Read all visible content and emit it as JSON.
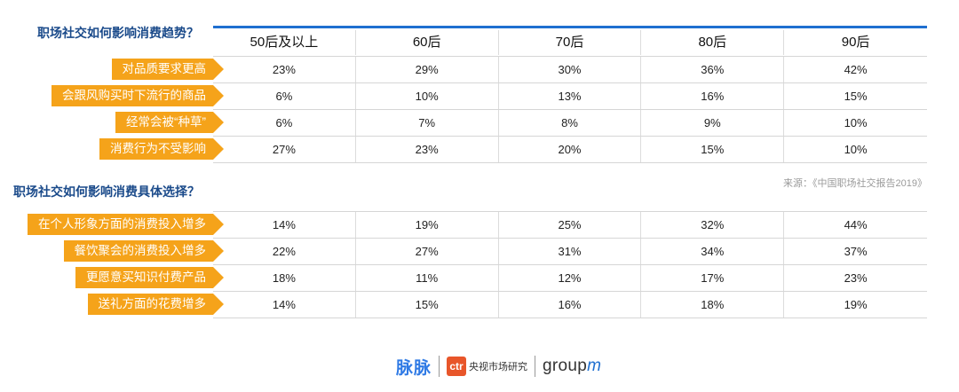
{
  "chart_data": [
    {
      "type": "table",
      "title": "职场社交如何影响消费趋势？",
      "columns": [
        "50后及以上",
        "60后",
        "70后",
        "80后",
        "90后"
      ],
      "rows": [
        {
          "label": "对品质要求更高",
          "values": [
            "23%",
            "29%",
            "30%",
            "36%",
            "42%"
          ]
        },
        {
          "label": "会跟风购买时下流行的商品",
          "values": [
            "6%",
            "10%",
            "13%",
            "16%",
            "15%"
          ]
        },
        {
          "label": "经常会被“种草”",
          "values": [
            "6%",
            "7%",
            "8%",
            "9%",
            "10%"
          ]
        },
        {
          "label": "消费行为不受影响",
          "values": [
            "27%",
            "23%",
            "20%",
            "15%",
            "10%"
          ]
        }
      ]
    },
    {
      "type": "table",
      "title": "职场社交如何影响消费具体选择？",
      "columns": [
        "50后及以上",
        "60后",
        "70后",
        "80后",
        "90后"
      ],
      "rows": [
        {
          "label": "在个人形象方面的消费投入增多",
          "values": [
            "14%",
            "19%",
            "25%",
            "32%",
            "44%"
          ]
        },
        {
          "label": "餐饮聚会的消费投入增多",
          "values": [
            "22%",
            "27%",
            "31%",
            "34%",
            "37%"
          ]
        },
        {
          "label": "更愿意买知识付费产品",
          "values": [
            "18%",
            "11%",
            "12%",
            "17%",
            "23%"
          ]
        },
        {
          "label": "送礼方面的花费增多",
          "values": [
            "14%",
            "15%",
            "16%",
            "18%",
            "19%"
          ]
        }
      ]
    }
  ],
  "source": "来源：《中国职场社交报告2019》",
  "logos": {
    "maimai": "脉脉",
    "ctr_badge": "ctr",
    "ctr_text": "央视市场研究",
    "groupm_main": "group",
    "groupm_m": "m"
  },
  "colors": {
    "label_bg": "#f5a31a",
    "title_blue": "#1a4a8a",
    "rule_blue": "#1f6fd0"
  }
}
